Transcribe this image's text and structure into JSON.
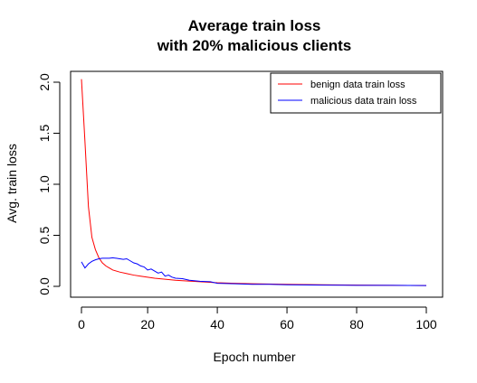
{
  "chart_data": {
    "type": "line",
    "title": [
      "Average train loss",
      "with 20% malicious clients"
    ],
    "xlabel": "Epoch number",
    "ylabel": "Avg. train loss",
    "xlim": [
      1,
      100
    ],
    "ylim": [
      0,
      2.05
    ],
    "xticks": [
      0,
      20,
      40,
      60,
      80,
      100
    ],
    "yticks": [
      0.0,
      0.5,
      1.0,
      1.5,
      2.0
    ],
    "xtick_labels": [
      "0",
      "20",
      "40",
      "60",
      "80",
      "100"
    ],
    "ytick_labels": [
      "0.0",
      "0.5",
      "1.0",
      "1.5",
      "2.0"
    ],
    "grid": false,
    "legend_position": "top-right",
    "series": [
      {
        "name": "benign data train loss",
        "color": "#ff0000",
        "x": [
          1,
          2,
          3,
          4,
          5,
          6,
          7,
          8,
          9,
          10,
          12,
          14,
          16,
          18,
          20,
          22,
          25,
          28,
          30,
          35,
          40,
          45,
          50,
          60,
          70,
          80,
          90,
          100
        ],
        "y": [
          2.03,
          1.42,
          0.78,
          0.48,
          0.36,
          0.28,
          0.23,
          0.2,
          0.18,
          0.16,
          0.14,
          0.125,
          0.11,
          0.1,
          0.09,
          0.08,
          0.07,
          0.06,
          0.055,
          0.045,
          0.035,
          0.03,
          0.025,
          0.02,
          0.015,
          0.012,
          0.01,
          0.008
        ]
      },
      {
        "name": "malicious data train loss",
        "color": "#0000ff",
        "x": [
          1,
          2,
          3,
          4,
          5,
          6,
          7,
          8,
          9,
          10,
          11,
          12,
          13,
          14,
          15,
          16,
          17,
          18,
          19,
          20,
          21,
          22,
          23,
          24,
          25,
          26,
          27,
          28,
          30,
          32,
          35,
          38,
          40,
          45,
          50,
          55,
          60,
          70,
          80,
          90,
          100
        ],
        "y": [
          0.24,
          0.18,
          0.22,
          0.245,
          0.26,
          0.27,
          0.275,
          0.275,
          0.275,
          0.28,
          0.275,
          0.27,
          0.265,
          0.27,
          0.25,
          0.23,
          0.22,
          0.2,
          0.19,
          0.16,
          0.17,
          0.15,
          0.13,
          0.14,
          0.1,
          0.11,
          0.09,
          0.08,
          0.075,
          0.06,
          0.05,
          0.045,
          0.03,
          0.025,
          0.02,
          0.02,
          0.015,
          0.012,
          0.01,
          0.01,
          0.008
        ]
      }
    ]
  }
}
